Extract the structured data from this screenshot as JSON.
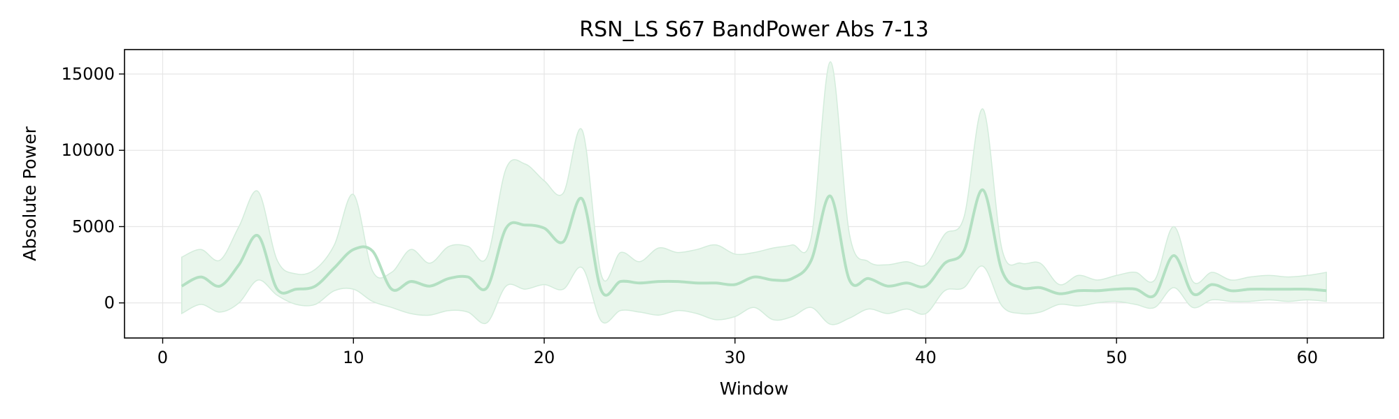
{
  "chart_data": {
    "type": "line",
    "title": "RSN_LS S67 BandPower Abs 7-13",
    "xlabel": "Window",
    "ylabel": "Absolute Power",
    "xlim": [
      -2,
      64
    ],
    "ylim": [
      -2300,
      16600
    ],
    "x_ticks": [
      0,
      10,
      20,
      30,
      40,
      50,
      60
    ],
    "y_ticks": [
      0,
      5000,
      10000,
      15000
    ],
    "grid": true,
    "legend": "none",
    "colors": {
      "line": "#b3e0c2",
      "band": "#e9f6ec",
      "band_edge": "#d3ecdb",
      "grid": "#e6e6e6",
      "axis": "#000000"
    },
    "series": [
      {
        "x": [
          1,
          2,
          3,
          4,
          5,
          6,
          7,
          8,
          9,
          10,
          11,
          12,
          13,
          14,
          15,
          16,
          17,
          18,
          19,
          20,
          21,
          22,
          23,
          24,
          25,
          26,
          27,
          28,
          29,
          30,
          31,
          32,
          33,
          34,
          35,
          36,
          37,
          38,
          39,
          40,
          41,
          42,
          43,
          44,
          45,
          46,
          47,
          48,
          49,
          50,
          51,
          52,
          53,
          54,
          55,
          56,
          57,
          58,
          59,
          60,
          61
        ],
        "mean": [
          1100,
          1700,
          1100,
          2500,
          4400,
          900,
          900,
          1100,
          2300,
          3500,
          3400,
          900,
          1400,
          1100,
          1600,
          1700,
          1000,
          4900,
          5100,
          4900,
          4000,
          6800,
          800,
          1400,
          1300,
          1400,
          1400,
          1300,
          1300,
          1200,
          1700,
          1500,
          1600,
          2800,
          7000,
          1500,
          1600,
          1100,
          1300,
          1100,
          2600,
          3400,
          7400,
          2100,
          1000,
          1000,
          600,
          800,
          800,
          900,
          900,
          500,
          3100,
          600,
          1200,
          800,
          900,
          900,
          900,
          900,
          800
        ],
        "upper": [
          3000,
          3500,
          2800,
          5000,
          7300,
          2800,
          1900,
          2200,
          3800,
          7100,
          2100,
          2000,
          3500,
          2600,
          3700,
          3700,
          3000,
          8800,
          9100,
          8000,
          7200,
          11300,
          1800,
          3300,
          2700,
          3600,
          3300,
          3500,
          3800,
          3200,
          3300,
          3600,
          3800,
          4300,
          15800,
          4500,
          2700,
          2500,
          2700,
          2500,
          4500,
          5600,
          12700,
          3500,
          2600,
          2600,
          1200,
          1800,
          1500,
          1800,
          2000,
          1500,
          5000,
          1400,
          2000,
          1500,
          1700,
          1800,
          1700,
          1800,
          2000
        ],
        "lower": [
          -700,
          -100,
          -600,
          0,
          1500,
          500,
          -100,
          -100,
          800,
          900,
          100,
          -300,
          -700,
          -800,
          -500,
          -600,
          -1300,
          1100,
          900,
          1200,
          900,
          2300,
          -1200,
          -500,
          -600,
          -800,
          -500,
          -700,
          -1100,
          -900,
          -300,
          -1100,
          -900,
          -300,
          -1400,
          -1000,
          -400,
          -700,
          -400,
          -700,
          800,
          1000,
          2400,
          -200,
          -700,
          -600,
          -100,
          -200,
          0,
          100,
          -100,
          -300,
          1000,
          -300,
          200,
          100,
          100,
          200,
          100,
          200,
          100
        ]
      }
    ]
  }
}
